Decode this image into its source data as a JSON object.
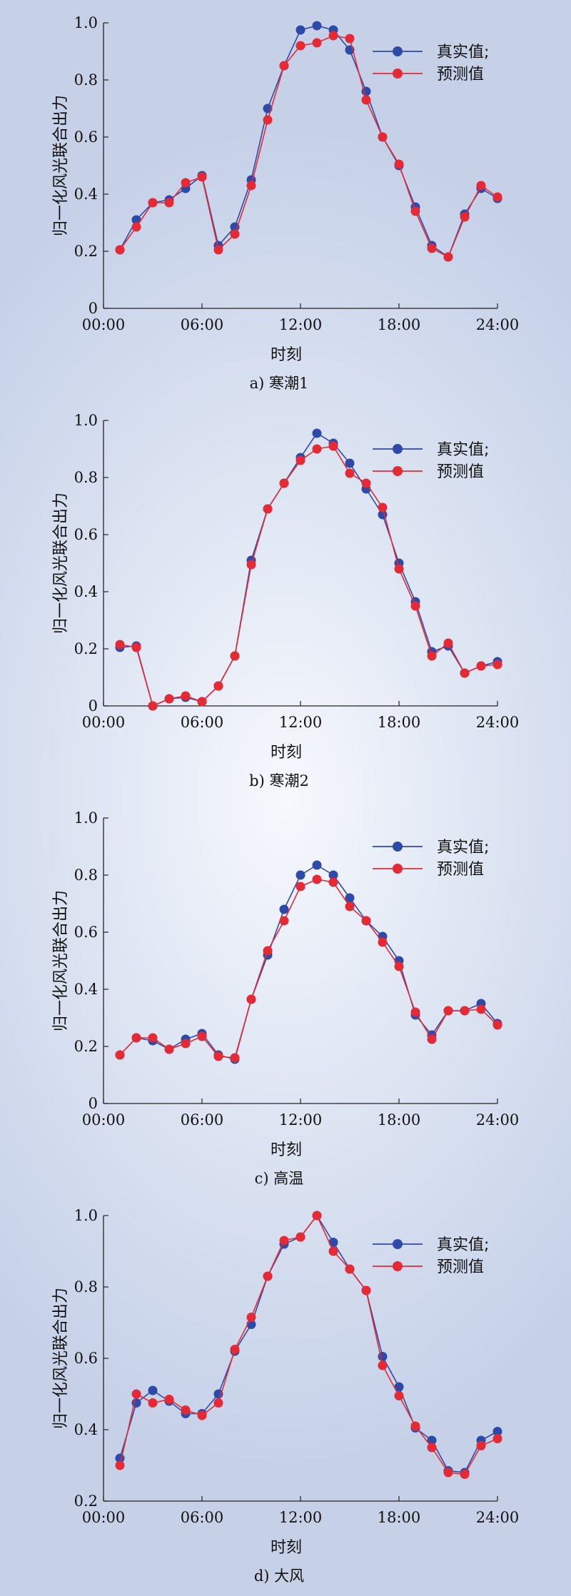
{
  "colors": {
    "actual": "#2e4aa8",
    "predicted": "#e52a35"
  },
  "chart_data": [
    {
      "type": "line",
      "caption": "a) 寒潮1",
      "xlabel": "时刻",
      "ylabel": "归一化风光联合出力",
      "x_ticks": [
        "00:00",
        "06:00",
        "12:00",
        "18:00",
        "24:00"
      ],
      "xlim": [
        0,
        24
      ],
      "ylim": [
        0,
        1.0
      ],
      "y_ticks": [
        "0",
        "0.2",
        "0.4",
        "0.6",
        "0.8",
        "1.0"
      ],
      "legend_position": "top-right",
      "x": [
        1,
        2,
        3,
        4,
        5,
        6,
        7,
        8,
        9,
        10,
        11,
        12,
        13,
        14,
        15,
        16,
        17,
        18,
        19,
        20,
        21,
        22,
        23,
        24
      ],
      "series": [
        {
          "name": "真实值;",
          "values": [
            0.205,
            0.31,
            0.37,
            0.38,
            0.42,
            0.465,
            0.22,
            0.285,
            0.45,
            0.7,
            0.85,
            0.975,
            0.99,
            0.975,
            0.905,
            0.76,
            0.6,
            0.5,
            0.355,
            0.22,
            0.18,
            0.33,
            0.42,
            0.385
          ]
        },
        {
          "name": "预测值",
          "values": [
            0.205,
            0.285,
            0.37,
            0.37,
            0.44,
            0.46,
            0.205,
            0.26,
            0.43,
            0.66,
            0.85,
            0.92,
            0.93,
            0.955,
            0.945,
            0.73,
            0.6,
            0.505,
            0.34,
            0.21,
            0.18,
            0.32,
            0.43,
            0.39
          ]
        }
      ]
    },
    {
      "type": "line",
      "caption": "b) 寒潮2",
      "xlabel": "时刻",
      "ylabel": "归一化风光联合出力",
      "x_ticks": [
        "00:00",
        "06:00",
        "12:00",
        "18:00",
        "24:00"
      ],
      "xlim": [
        0,
        24
      ],
      "ylim": [
        0,
        1.0
      ],
      "y_ticks": [
        "0",
        "0.2",
        "0.4",
        "0.6",
        "0.8",
        "1.0"
      ],
      "legend_position": "top-right",
      "x": [
        1,
        2,
        3,
        4,
        5,
        6,
        7,
        8,
        9,
        10,
        11,
        12,
        13,
        14,
        15,
        16,
        17,
        18,
        19,
        20,
        21,
        22,
        23,
        24
      ],
      "series": [
        {
          "name": "真实值;",
          "values": [
            0.205,
            0.21,
            0.0,
            0.025,
            0.03,
            0.015,
            0.07,
            0.175,
            0.51,
            0.69,
            0.78,
            0.87,
            0.955,
            0.92,
            0.85,
            0.76,
            0.67,
            0.5,
            0.365,
            0.19,
            0.21,
            0.115,
            0.14,
            0.155
          ]
        },
        {
          "name": "预测值",
          "values": [
            0.215,
            0.205,
            0.0,
            0.025,
            0.035,
            0.015,
            0.07,
            0.175,
            0.495,
            0.69,
            0.78,
            0.86,
            0.9,
            0.91,
            0.815,
            0.78,
            0.695,
            0.48,
            0.35,
            0.175,
            0.22,
            0.115,
            0.14,
            0.145
          ]
        }
      ]
    },
    {
      "type": "line",
      "caption": "c) 高温",
      "xlabel": "时刻",
      "ylabel": "归一化风光联合出力",
      "x_ticks": [
        "00:00",
        "06:00",
        "12:00",
        "18:00",
        "24:00"
      ],
      "xlim": [
        0,
        24
      ],
      "ylim": [
        0,
        1.0
      ],
      "y_ticks": [
        "0",
        "0.2",
        "0.4",
        "0.6",
        "0.8",
        "1.0"
      ],
      "legend_position": "top-right",
      "x": [
        1,
        2,
        3,
        4,
        5,
        6,
        7,
        8,
        9,
        10,
        11,
        12,
        13,
        14,
        15,
        16,
        17,
        18,
        19,
        20,
        21,
        22,
        23,
        24
      ],
      "series": [
        {
          "name": "真实值;",
          "values": [
            0.17,
            0.23,
            0.22,
            0.19,
            0.225,
            0.245,
            0.17,
            0.155,
            0.365,
            0.52,
            0.68,
            0.8,
            0.835,
            0.8,
            0.72,
            0.64,
            0.585,
            0.5,
            0.31,
            0.24,
            0.325,
            0.325,
            0.35,
            0.28
          ]
        },
        {
          "name": "预测值",
          "values": [
            0.17,
            0.23,
            0.23,
            0.19,
            0.21,
            0.235,
            0.165,
            0.16,
            0.365,
            0.535,
            0.64,
            0.76,
            0.785,
            0.775,
            0.69,
            0.64,
            0.565,
            0.48,
            0.32,
            0.225,
            0.325,
            0.325,
            0.33,
            0.275
          ]
        }
      ]
    },
    {
      "type": "line",
      "caption": "d) 大风",
      "xlabel": "时刻",
      "ylabel": "归一化风光联合出力",
      "x_ticks": [
        "00:00",
        "06:00",
        "12:00",
        "18:00",
        "24:00"
      ],
      "xlim": [
        0,
        24
      ],
      "ylim": [
        0.2,
        1.0
      ],
      "y_ticks": [
        "0.2",
        "0.4",
        "0.6",
        "0.8",
        "1.0"
      ],
      "legend_position": "top-right",
      "x": [
        1,
        2,
        3,
        4,
        5,
        6,
        7,
        8,
        9,
        10,
        11,
        12,
        13,
        14,
        15,
        16,
        17,
        18,
        19,
        20,
        21,
        22,
        23,
        24
      ],
      "series": [
        {
          "name": "真实值;",
          "values": [
            0.32,
            0.475,
            0.51,
            0.48,
            0.445,
            0.445,
            0.5,
            0.62,
            0.695,
            0.83,
            0.92,
            0.94,
            1.0,
            0.925,
            0.85,
            0.79,
            0.605,
            0.52,
            0.405,
            0.37,
            0.285,
            0.28,
            0.37,
            0.395
          ]
        },
        {
          "name": "预测值",
          "values": [
            0.3,
            0.5,
            0.475,
            0.485,
            0.455,
            0.44,
            0.475,
            0.625,
            0.715,
            0.83,
            0.93,
            0.94,
            1.0,
            0.9,
            0.85,
            0.79,
            0.58,
            0.495,
            0.41,
            0.35,
            0.28,
            0.275,
            0.355,
            0.375
          ]
        }
      ]
    }
  ]
}
